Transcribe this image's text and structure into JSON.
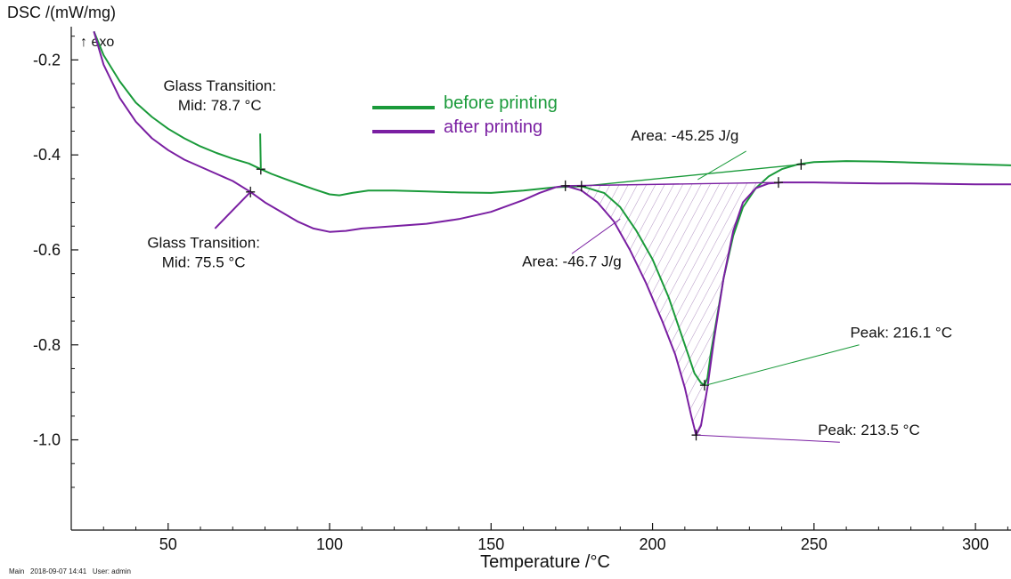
{
  "chart_data": {
    "type": "line",
    "ylabel": "DSC /(mW/mg)",
    "xlabel": "Temperature /°C",
    "exo_label": "↑ exo",
    "xlim": [
      20,
      311
    ],
    "ylim": [
      -1.19,
      -0.13
    ],
    "x_ticks": [
      50,
      100,
      150,
      200,
      250,
      300
    ],
    "x_tick_labels": [
      "50",
      "100",
      "150",
      "200",
      "250",
      "300"
    ],
    "y_ticks": [
      -0.2,
      -0.4,
      -0.6,
      -0.8,
      -1.0
    ],
    "y_tick_labels": [
      "-0.2",
      "-0.4",
      "-0.6",
      "-0.8",
      "-1.0"
    ],
    "grid": false,
    "legend_position": "top-center",
    "series": [
      {
        "name": "before printing",
        "color": "#1a9a3a",
        "x": [
          27,
          30,
          35,
          40,
          45,
          50,
          55,
          60,
          65,
          70,
          75,
          78.7,
          82,
          86,
          90,
          95,
          100,
          103,
          107,
          112,
          120,
          130,
          140,
          150,
          160,
          170,
          178,
          185,
          190,
          195,
          200,
          205,
          208,
          211,
          213,
          215,
          216.1,
          217,
          218,
          220,
          222,
          225,
          228,
          232,
          236,
          240,
          245,
          250,
          260,
          270,
          280,
          290,
          300,
          311
        ],
        "y": [
          -0.14,
          -0.19,
          -0.245,
          -0.29,
          -0.32,
          -0.345,
          -0.365,
          -0.382,
          -0.396,
          -0.408,
          -0.418,
          -0.43,
          -0.44,
          -0.45,
          -0.46,
          -0.472,
          -0.483,
          -0.485,
          -0.48,
          -0.475,
          -0.475,
          -0.477,
          -0.479,
          -0.48,
          -0.475,
          -0.468,
          -0.466,
          -0.48,
          -0.51,
          -0.56,
          -0.62,
          -0.7,
          -0.76,
          -0.82,
          -0.86,
          -0.88,
          -0.885,
          -0.87,
          -0.82,
          -0.74,
          -0.66,
          -0.57,
          -0.51,
          -0.47,
          -0.445,
          -0.43,
          -0.42,
          -0.415,
          -0.413,
          -0.414,
          -0.416,
          -0.418,
          -0.42,
          -0.422
        ]
      },
      {
        "name": "after printing",
        "color": "#7a1fa2",
        "x": [
          27,
          30,
          35,
          40,
          45,
          50,
          55,
          60,
          65,
          70,
          75.5,
          80,
          85,
          90,
          95,
          100,
          105,
          110,
          120,
          130,
          140,
          150,
          160,
          165,
          170,
          173,
          178,
          183,
          188,
          193,
          198,
          203,
          207,
          210,
          212,
          213.5,
          215,
          217,
          219,
          222,
          225,
          228,
          232,
          236,
          240,
          250,
          260,
          270,
          280,
          290,
          300,
          311
        ],
        "y": [
          -0.14,
          -0.21,
          -0.28,
          -0.33,
          -0.365,
          -0.39,
          -0.41,
          -0.425,
          -0.44,
          -0.455,
          -0.478,
          -0.5,
          -0.52,
          -0.54,
          -0.555,
          -0.562,
          -0.56,
          -0.555,
          -0.55,
          -0.545,
          -0.535,
          -0.52,
          -0.495,
          -0.48,
          -0.468,
          -0.465,
          -0.475,
          -0.5,
          -0.54,
          -0.6,
          -0.67,
          -0.75,
          -0.82,
          -0.89,
          -0.95,
          -0.99,
          -0.97,
          -0.89,
          -0.79,
          -0.66,
          -0.56,
          -0.5,
          -0.47,
          -0.46,
          -0.458,
          -0.458,
          -0.459,
          -0.46,
          -0.46,
          -0.461,
          -0.462,
          -0.462
        ]
      }
    ],
    "baselines": [
      {
        "series": "before printing",
        "x": [
          178,
          246
        ],
        "y": [
          -0.466,
          -0.42
        ]
      },
      {
        "series": "after printing",
        "x": [
          173,
          239
        ],
        "y": [
          -0.465,
          -0.458
        ]
      }
    ],
    "markers": [
      {
        "series": "before printing",
        "x": 78.7,
        "y": -0.43
      },
      {
        "series": "before printing",
        "x": 178,
        "y": -0.466
      },
      {
        "series": "before printing",
        "x": 216.1,
        "y": -0.885
      },
      {
        "series": "before printing",
        "x": 246,
        "y": -0.42
      },
      {
        "series": "after printing",
        "x": 75.5,
        "y": -0.478
      },
      {
        "series": "after printing",
        "x": 173,
        "y": -0.465
      },
      {
        "series": "after printing",
        "x": 213.5,
        "y": -0.99
      },
      {
        "series": "after printing",
        "x": 239,
        "y": -0.458
      }
    ],
    "annotations": [
      {
        "series": "before printing",
        "lines": [
          "Glass Transition:",
          "Mid: 78.7 °C"
        ],
        "text_at": [
          66,
          -0.265
        ],
        "align": "center",
        "leader": [
          [
            78.5,
            -0.355
          ],
          [
            78.7,
            -0.43
          ]
        ]
      },
      {
        "series": "after printing",
        "lines": [
          "Glass Transition:",
          "Mid: 75.5 °C"
        ],
        "text_at": [
          61,
          -0.595
        ],
        "align": "center",
        "leader": [
          [
            64.5,
            -0.555
          ],
          [
            75.5,
            -0.478
          ]
        ]
      },
      {
        "series": "before printing",
        "lines": [
          "Area: -45.25 J/g"
        ],
        "text_at": [
          210,
          -0.37
        ],
        "align": "middle",
        "leader": [
          [
            229,
            -0.392
          ],
          [
            214,
            -0.452
          ]
        ]
      },
      {
        "series": "after printing",
        "lines": [
          "Area: -46.7 J/g"
        ],
        "text_at": [
          175,
          -0.635
        ],
        "align": "middle",
        "leader": [
          [
            175,
            -0.608
          ],
          [
            190,
            -0.535
          ]
        ]
      },
      {
        "series": "before printing",
        "lines": [
          "Peak: 216.1 °C"
        ],
        "text_at": [
          277,
          -0.785
        ],
        "align": "middle",
        "leader": [
          [
            264,
            -0.8
          ],
          [
            216.5,
            -0.885
          ]
        ]
      },
      {
        "series": "after printing",
        "lines": [
          "Peak: 213.5 °C"
        ],
        "text_at": [
          267,
          -0.99
        ],
        "align": "middle",
        "leader": [
          [
            258,
            -1.005
          ],
          [
            214,
            -0.99
          ]
        ]
      }
    ]
  },
  "footer": {
    "text": "Main   2018-09-07 14:41   User: admin"
  }
}
